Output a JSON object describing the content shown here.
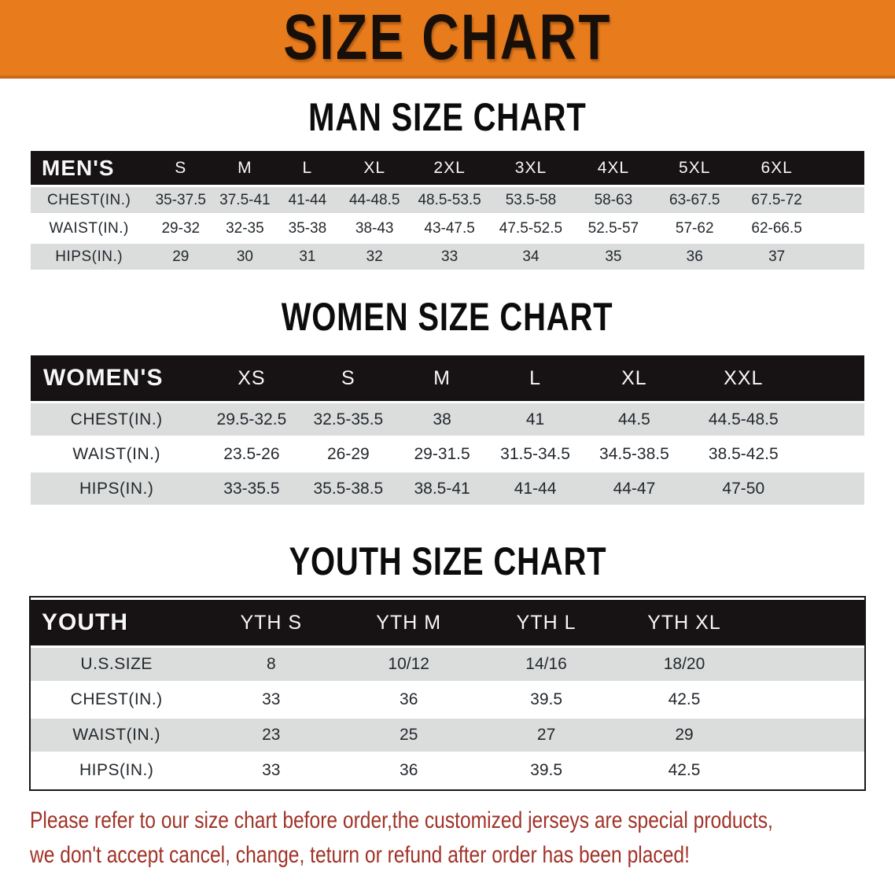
{
  "banner": {
    "title": "SIZE CHART"
  },
  "colors": {
    "banner_bg": "#e87c1d",
    "banner_text": "#181008",
    "header_bg": "#171213",
    "header_text": "#f7f7f7",
    "row_stripe": "#dbdddd",
    "row_text": "#23282d",
    "disclaimer_red": "#a03328"
  },
  "sections": [
    {
      "key": "men",
      "heading": "MAN SIZE CHART",
      "table_title": "MEN'S",
      "columns": [
        "S",
        "M",
        "L",
        "XL",
        "2XL",
        "3XL",
        "4XL",
        "5XL",
        "6XL"
      ],
      "rows": [
        {
          "label": "CHEST(IN.)",
          "values": [
            "35-37.5",
            "37.5-41",
            "41-44",
            "44-48.5",
            "48.5-53.5",
            "53.5-58",
            "58-63",
            "63-67.5",
            "67.5-72"
          ]
        },
        {
          "label": "WAIST(IN.)",
          "values": [
            "29-32",
            "32-35",
            "35-38",
            "38-43",
            "43-47.5",
            "47.5-52.5",
            "52.5-57",
            "57-62",
            "62-66.5"
          ]
        },
        {
          "label": "HIPS(IN.)",
          "values": [
            "29",
            "30",
            "31",
            "32",
            "33",
            "34",
            "35",
            "36",
            "37"
          ]
        }
      ]
    },
    {
      "key": "women",
      "heading": "WOMEN SIZE CHART",
      "table_title": "WOMEN'S",
      "columns": [
        "XS",
        "S",
        "M",
        "L",
        "XL",
        "XXL"
      ],
      "rows": [
        {
          "label": "CHEST(IN.)",
          "values": [
            "29.5-32.5",
            "32.5-35.5",
            "38",
            "41",
            "44.5",
            "44.5-48.5"
          ]
        },
        {
          "label": "WAIST(IN.)",
          "values": [
            "23.5-26",
            "26-29",
            "29-31.5",
            "31.5-34.5",
            "34.5-38.5",
            "38.5-42.5"
          ]
        },
        {
          "label": "HIPS(IN.)",
          "values": [
            "33-35.5",
            "35.5-38.5",
            "38.5-41",
            "41-44",
            "44-47",
            "47-50"
          ]
        }
      ]
    },
    {
      "key": "youth",
      "heading": "YOUTH SIZE CHART",
      "table_title": "YOUTH",
      "columns": [
        "YTH S",
        "YTH M",
        "YTH L",
        "YTH XL"
      ],
      "rows": [
        {
          "label": "U.S.SIZE",
          "values": [
            "8",
            "10/12",
            "14/16",
            "18/20"
          ]
        },
        {
          "label": "CHEST(IN.)",
          "values": [
            "33",
            "36",
            "39.5",
            "42.5"
          ]
        },
        {
          "label": "WAIST(IN.)",
          "values": [
            "23",
            "25",
            "27",
            "29"
          ]
        },
        {
          "label": "HIPS(IN.)",
          "values": [
            "33",
            "36",
            "39.5",
            "42.5"
          ]
        }
      ]
    }
  ],
  "disclaimer": {
    "line1": "Please refer to our size chart before order,the customized jerseys are special products,",
    "line2": "we don't accept cancel, change, teturn or refund after order has been placed!"
  }
}
